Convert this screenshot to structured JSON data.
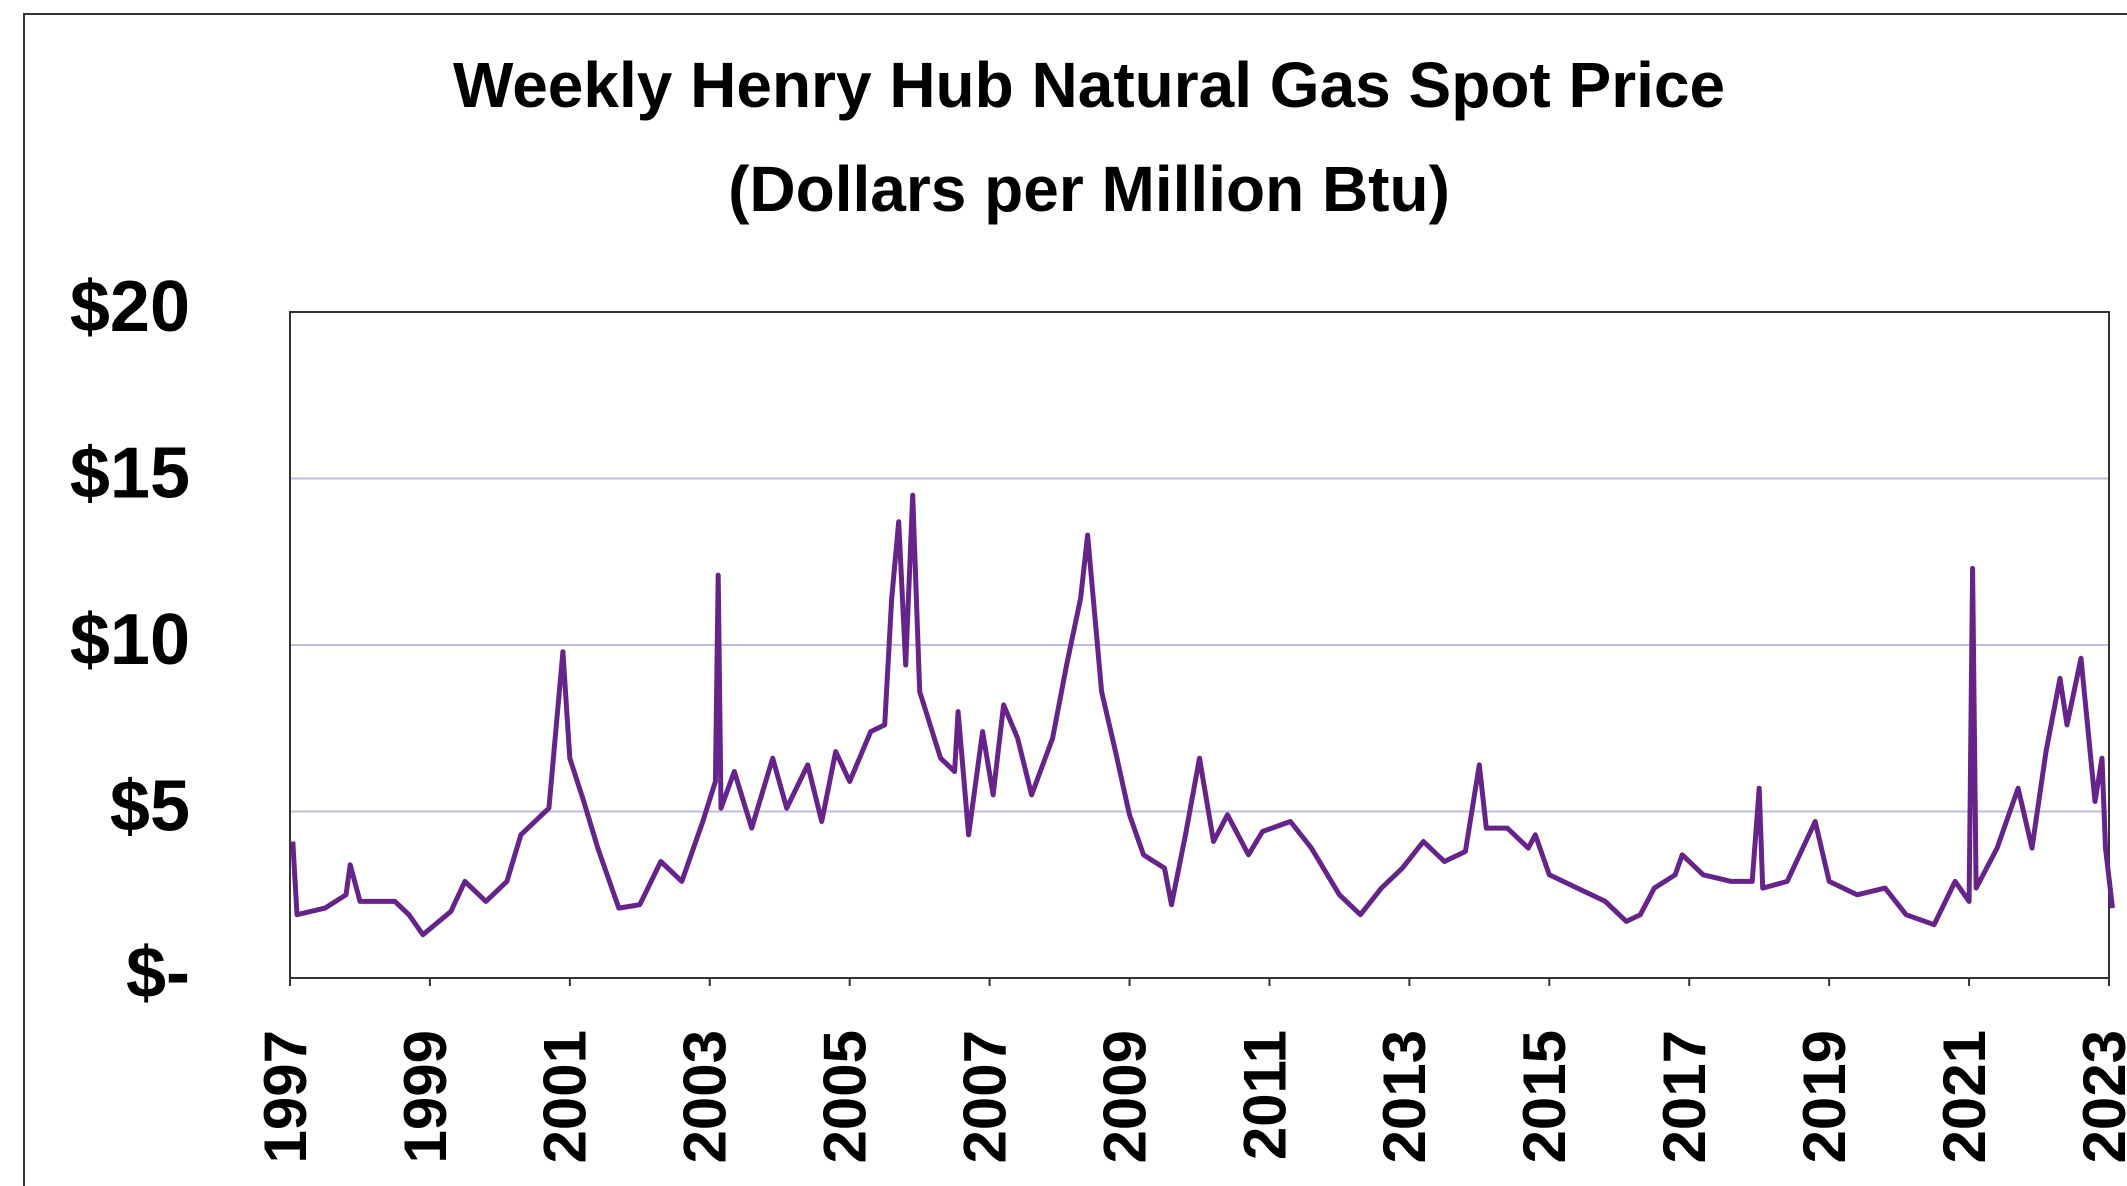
{
  "chart_data": {
    "type": "line",
    "title": "Weekly Henry Hub Natural Gas Spot Price",
    "subtitle": "(Dollars per Million Btu)",
    "x": [
      1997.04,
      1997.1,
      1997.5,
      1997.8,
      1997.86,
      1998.0,
      1998.5,
      1998.7,
      1998.9,
      1999.3,
      1999.5,
      1999.8,
      2000.1,
      2000.3,
      2000.7,
      2000.9,
      2001.0,
      2001.2,
      2001.4,
      2001.7,
      2002.0,
      2002.3,
      2002.6,
      2002.9,
      2003.08,
      2003.12,
      2003.16,
      2003.35,
      2003.6,
      2003.9,
      2004.1,
      2004.4,
      2004.6,
      2004.8,
      2005.0,
      2005.3,
      2005.5,
      2005.6,
      2005.7,
      2005.8,
      2005.9,
      2006.0,
      2006.3,
      2006.5,
      2006.55,
      2006.7,
      2006.9,
      2007.05,
      2007.2,
      2007.4,
      2007.6,
      2007.9,
      2008.1,
      2008.3,
      2008.4,
      2008.6,
      2008.8,
      2009.0,
      2009.2,
      2009.5,
      2009.6,
      2009.8,
      2010.0,
      2010.2,
      2010.4,
      2010.7,
      2010.9,
      2011.3,
      2011.6,
      2012.0,
      2012.3,
      2012.6,
      2012.9,
      2013.2,
      2013.5,
      2013.8,
      2014.0,
      2014.1,
      2014.4,
      2014.7,
      2014.8,
      2015.0,
      2015.4,
      2015.8,
      2016.1,
      2016.3,
      2016.5,
      2016.8,
      2016.9,
      2017.2,
      2017.6,
      2017.9,
      2018.0,
      2018.05,
      2018.4,
      2018.8,
      2019.0,
      2019.4,
      2019.8,
      2020.1,
      2020.5,
      2020.8,
      2021.0,
      2021.05,
      2021.1,
      2021.4,
      2021.7,
      2021.9,
      2022.1,
      2022.3,
      2022.4,
      2022.6,
      2022.8,
      2022.9,
      2022.95,
      2023.05
    ],
    "values": [
      4.1,
      1.9,
      2.1,
      2.5,
      3.4,
      2.3,
      2.3,
      1.9,
      1.3,
      2.0,
      2.9,
      2.3,
      2.9,
      4.3,
      5.1,
      9.8,
      6.6,
      5.3,
      3.9,
      2.1,
      2.2,
      3.5,
      2.9,
      4.7,
      5.9,
      12.1,
      5.1,
      6.2,
      4.5,
      6.6,
      5.1,
      6.4,
      4.7,
      6.8,
      5.9,
      7.4,
      7.6,
      11.4,
      13.7,
      9.4,
      14.5,
      8.6,
      6.6,
      6.2,
      8.0,
      4.3,
      7.4,
      5.5,
      8.2,
      7.2,
      5.5,
      7.2,
      9.4,
      11.4,
      13.3,
      8.6,
      6.8,
      4.9,
      3.7,
      3.3,
      2.2,
      4.3,
      6.6,
      4.1,
      4.9,
      3.7,
      4.4,
      4.7,
      3.9,
      2.5,
      1.9,
      2.7,
      3.3,
      4.1,
      3.5,
      3.8,
      6.4,
      4.5,
      4.5,
      3.9,
      4.3,
      3.1,
      2.7,
      2.3,
      1.7,
      1.9,
      2.7,
      3.1,
      3.7,
      3.1,
      2.9,
      2.9,
      5.7,
      2.7,
      2.9,
      4.7,
      2.9,
      2.5,
      2.7,
      1.9,
      1.6,
      2.9,
      2.3,
      12.3,
      2.7,
      3.9,
      5.7,
      3.9,
      6.8,
      9.0,
      7.6,
      9.6,
      5.3,
      6.6,
      3.9,
      2.1
    ],
    "color": "#66248a",
    "xlim": [
      1997,
      2023
    ],
    "xticks": [
      1997,
      1999,
      2001,
      2003,
      2005,
      2007,
      2009,
      2011,
      2013,
      2015,
      2017,
      2019,
      2021,
      2023
    ],
    "ylim": [
      0,
      20
    ],
    "yticks": [
      {
        "value": 0,
        "label": "$-"
      },
      {
        "value": 5,
        "label": "$5"
      },
      {
        "value": 10,
        "label": "$10"
      },
      {
        "value": 15,
        "label": "$15"
      },
      {
        "value": 20,
        "label": "$20"
      }
    ],
    "grid": true
  }
}
